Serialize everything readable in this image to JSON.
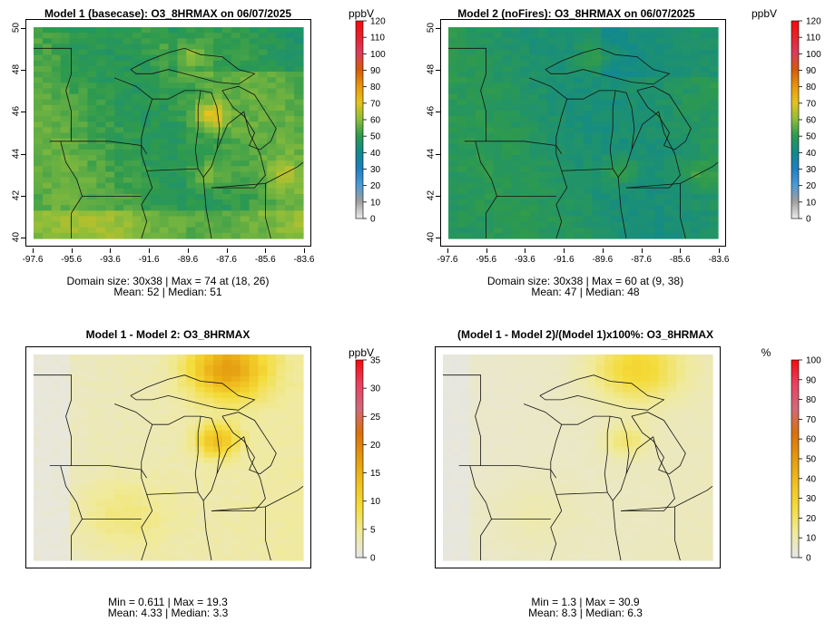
{
  "chart_data": [
    {
      "id": "m1",
      "type": "heatmap",
      "title": "Model 1 (basecase): O3_8HRMAX on 06/07/2025",
      "unit": "ppbV",
      "scale_max": 120,
      "colorbar_ticks": [
        0,
        10,
        20,
        30,
        40,
        50,
        60,
        70,
        80,
        90,
        100,
        110,
        120
      ],
      "xticks": [
        "-97.6",
        "-95.6",
        "-93.6",
        "-91.6",
        "-89.6",
        "-87.6",
        "-85.6",
        "-83.6"
      ],
      "yticks": [
        "40",
        "42",
        "44",
        "46",
        "48",
        "50"
      ],
      "xlim": [
        -98.0,
        -83.4
      ],
      "ylim": [
        40,
        50
      ],
      "stat_line1": "Domain size: 30x38 | Max = 74 at (18, 26)",
      "stat_line2": "Mean: 52 |  Median: 51",
      "grid": "off",
      "legend": "right"
    },
    {
      "id": "m2",
      "type": "heatmap",
      "title": "Model 2 (noFires): O3_8HRMAX on 06/07/2025",
      "unit": "ppbV",
      "scale_max": 120,
      "colorbar_ticks": [
        0,
        10,
        20,
        30,
        40,
        50,
        60,
        70,
        80,
        90,
        100,
        110,
        120
      ],
      "xticks": [
        "-97.6",
        "-95.6",
        "-93.6",
        "-91.6",
        "-89.6",
        "-87.6",
        "-85.6",
        "-83.6"
      ],
      "yticks": [
        "40",
        "42",
        "44",
        "46",
        "48",
        "50"
      ],
      "xlim": [
        -98.0,
        -83.4
      ],
      "ylim": [
        40,
        50
      ],
      "stat_line1": "Domain size: 30x38 | Max = 60 at (9, 38)",
      "stat_line2": "Mean: 47 |  Median: 48",
      "grid": "off",
      "legend": "right"
    },
    {
      "id": "diff",
      "type": "heatmap",
      "title": "Model 1 - Model 2: O3_8HRMAX",
      "unit": "ppbV",
      "scale_max": 35,
      "colorbar_ticks": [
        0,
        5,
        10,
        15,
        20,
        25,
        30,
        35
      ],
      "stat_line1": "Min = 0.611 | Max = 19.3",
      "stat_line2": "Mean: 4.33 |  Median: 3.3",
      "grid": "off",
      "legend": "right"
    },
    {
      "id": "pct",
      "type": "heatmap",
      "title": "(Model 1 - Model 2)/(Model 1)x100%: O3_8HRMAX",
      "unit": "%",
      "scale_max": 100,
      "colorbar_ticks": [
        0,
        10,
        20,
        30,
        40,
        50,
        60,
        70,
        80,
        90,
        100
      ],
      "stat_line1": "Min = 1.3 | Max = 30.9",
      "stat_line2": "Mean: 8.3 |  Median: 6.3",
      "grid": "off",
      "legend": "right"
    }
  ],
  "colors": {
    "ozone_ramp": [
      "#e8e8e8",
      "#9e9e9e",
      "#4a9ad8",
      "#1f7fbf",
      "#128a8a",
      "#2e9a4e",
      "#8fbe3a",
      "#e6c21e",
      "#e8960c",
      "#d45a0a",
      "#d93c5e",
      "#e6222a",
      "#f50a0a"
    ],
    "diff_ramp": [
      "#e6e6e6",
      "#f0ea9a",
      "#f4dc3a",
      "#f0c020",
      "#e49a10",
      "#d9700c",
      "#cf6a7a",
      "#e84060",
      "#f50a0a"
    ]
  }
}
